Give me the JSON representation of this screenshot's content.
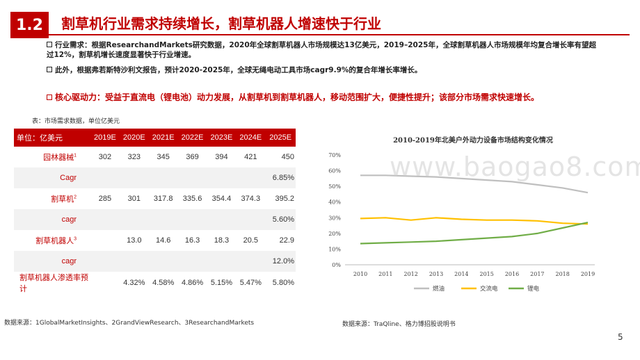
{
  "header": {
    "section": "1.2",
    "title": "割草机行业需求持续增长，割草机器人增速快于行业"
  },
  "bullets": [
    "行业需求：根据ResearchandMarkets研究数据，2020年全球割草机器人市场规模达13亿美元，2019–2025年，全球割草机器人市场规模年均复合增长率有望超过12%，割草机增长速度显著快于行业增速。",
    "此外，根据弗若斯特沙利文报告，预计2020-2025年，全球无绳电动工具市场cagr9.9%的复合年增长率增长。",
    "核心驱动力：受益于直流电（锂电池）动力发展，从割草机到割草机器人，移动范围扩大，便捷性提升；该部分市场需求快速增长。"
  ],
  "table": {
    "caption": "表：市场需求数据，单位亿美元",
    "unit_label": "单位：亿美元",
    "columns": [
      "2019E",
      "2020E",
      "2021E",
      "2022E",
      "2023E",
      "2024E",
      "2025E"
    ],
    "rows": [
      {
        "label": "园林器械",
        "sup": "1",
        "values": [
          "302",
          "323",
          "345",
          "369",
          "394",
          "421",
          "450"
        ]
      },
      {
        "label": "Cagr",
        "sup": "",
        "values": [
          "",
          "",
          "",
          "",
          "",
          "",
          "6.85%"
        ]
      },
      {
        "label": "割草机",
        "sup": "2",
        "values": [
          "285",
          "301",
          "317.8",
          "335.6",
          "354.4",
          "374.3",
          "395.2"
        ]
      },
      {
        "label": "cagr",
        "sup": "",
        "values": [
          "",
          "",
          "",
          "",
          "",
          "",
          "5.60%"
        ]
      },
      {
        "label": "割草机器人",
        "sup": "3",
        "values": [
          "",
          "13.0",
          "14.6",
          "16.3",
          "18.3",
          "20.5",
          "22.9"
        ]
      },
      {
        "label": "cagr",
        "sup": "",
        "values": [
          "",
          "",
          "",
          "",
          "",
          "",
          "12.0%"
        ]
      },
      {
        "label": "割草机器人渗透率预计",
        "sup": "",
        "values": [
          "",
          "4.32%",
          "4.58%",
          "4.86%",
          "5.15%",
          "5.47%",
          "5.80%"
        ]
      }
    ]
  },
  "sources": {
    "left": "数据来源：1GlobalMarketInsights、2GrandViewResearch、3ResearchandMarkets",
    "right": "数据来源：TraQline、格力博招股说明书"
  },
  "page_number": "5",
  "watermark": "www.baogao8.com",
  "chart_data": {
    "type": "line",
    "title": "2010-2019年北美户外动力设备市场结构变化情况",
    "x": [
      2010,
      2011,
      2012,
      2013,
      2014,
      2015,
      2016,
      2017,
      2018,
      2019
    ],
    "ylim": [
      0,
      70
    ],
    "yticks": [
      "0%",
      "10%",
      "20%",
      "30%",
      "40%",
      "50%",
      "60%",
      "70%"
    ],
    "grid": false,
    "legend": "bottom",
    "series": [
      {
        "name": "燃油",
        "color": "#bfbfbf",
        "values": [
          57,
          57,
          56.5,
          56,
          55,
          54,
          53,
          51,
          49,
          46
        ]
      },
      {
        "name": "交流电",
        "color": "#ffc000",
        "values": [
          29.5,
          30,
          28.5,
          30,
          29,
          28.5,
          28.5,
          28,
          26.5,
          26
        ]
      },
      {
        "name": "锂电",
        "color": "#70ad47",
        "values": [
          13.5,
          14,
          14.5,
          15,
          16,
          17,
          18,
          20,
          23.5,
          27
        ]
      }
    ]
  }
}
